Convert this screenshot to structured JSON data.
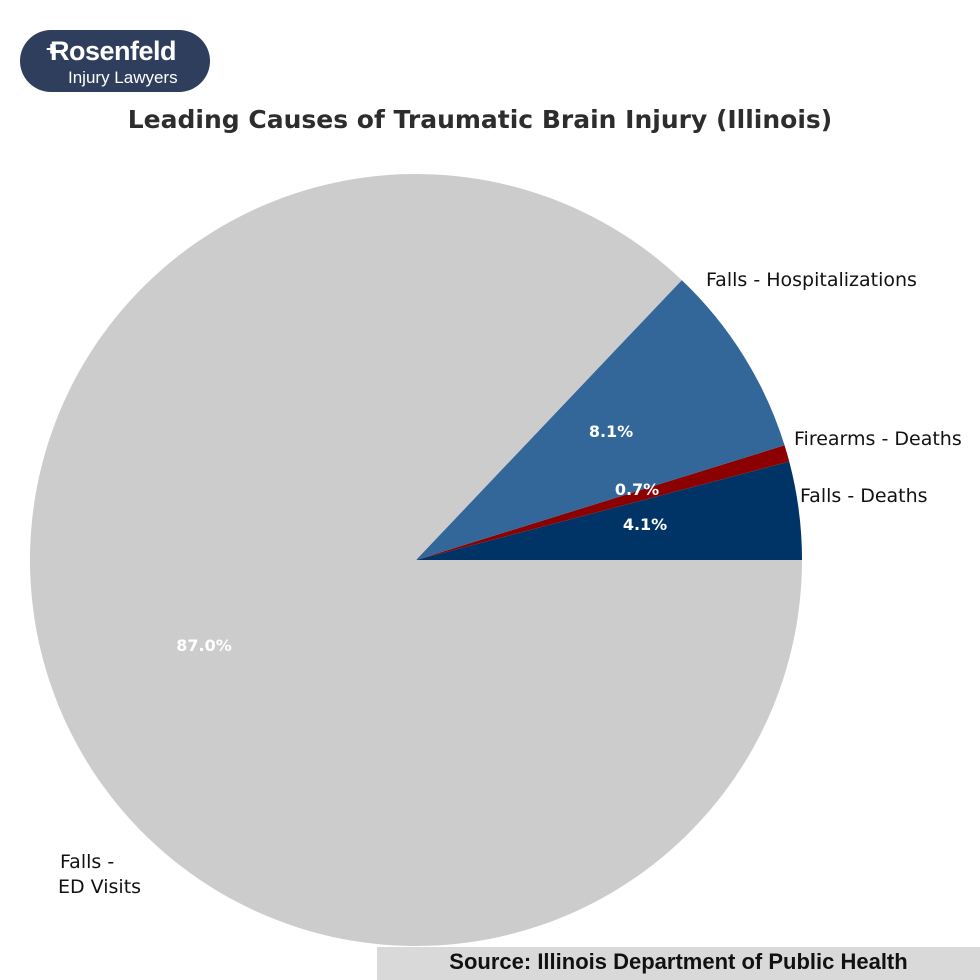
{
  "logo": {
    "brand": "Rosenfeld",
    "tagline": "Injury Lawyers"
  },
  "chart_data": {
    "type": "pie",
    "title": "Leading Causes of Traumatic Brain Injury (Illinois)",
    "slices": [
      {
        "label": "Falls - Deaths",
        "value": 4.1,
        "display": "4.1%",
        "color": "#003366"
      },
      {
        "label": "Firearms - Deaths",
        "value": 0.7,
        "display": "0.7%",
        "color": "#8b0000"
      },
      {
        "label": "Falls - Hospitalizations",
        "value": 8.1,
        "display": "8.1%",
        "color": "#336699"
      },
      {
        "label": "Falls -\nED Visits",
        "value": 87.0,
        "display": "87.0%",
        "color": "#cccccc"
      }
    ],
    "start_angle_deg": 0,
    "direction": "counterclockwise"
  },
  "footer": {
    "source": "Source: Illinois Department of Public Health"
  }
}
